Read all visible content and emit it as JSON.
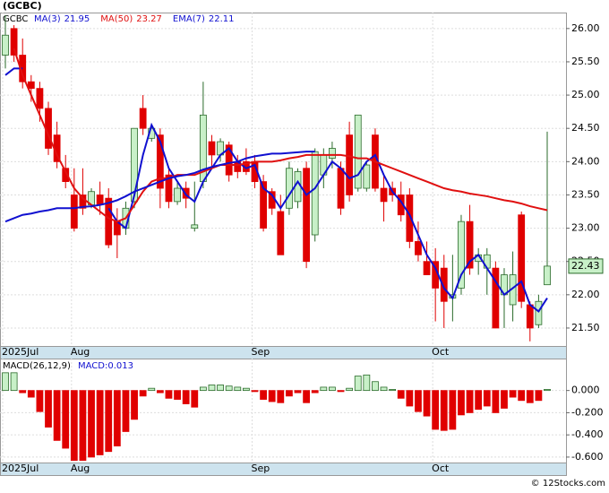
{
  "chart_data": [
    {
      "type": "candlestick",
      "title": "(GCBC)",
      "symbol": "GCBC",
      "categories": [
        "2025Jul",
        null,
        null,
        null,
        null,
        null,
        null,
        null,
        "Aug",
        null,
        null,
        null,
        null,
        null,
        null,
        null,
        null,
        null,
        null,
        null,
        null,
        null,
        null,
        null,
        null,
        null,
        null,
        null,
        null,
        "Sep",
        null,
        null,
        null,
        null,
        null,
        null,
        null,
        null,
        null,
        null,
        null,
        null,
        null,
        null,
        null,
        null,
        null,
        null,
        null,
        null,
        "Oct",
        null,
        null,
        null,
        null,
        null,
        null,
        null,
        null,
        null,
        null,
        null,
        null,
        null
      ],
      "open": [
        25.6,
        26.0,
        25.6,
        25.2,
        25.1,
        24.8,
        24.4,
        23.9,
        23.5,
        23.5,
        23.35,
        23.5,
        23.45,
        23.1,
        23.0,
        23.4,
        24.8,
        24.35,
        24.4,
        23.8,
        23.4,
        23.6,
        23.0,
        23.7,
        24.3,
        24.1,
        24.25,
        24.0,
        24.0,
        24.0,
        23.7,
        23.55,
        23.25,
        23.3,
        23.4,
        23.9,
        22.9,
        23.8,
        24.05,
        23.9,
        24.4,
        23.6,
        23.6,
        24.4,
        23.6,
        23.6,
        23.5,
        23.5,
        22.8,
        22.5,
        22.5,
        22.4,
        21.95,
        22.1,
        23.1,
        22.5,
        22.4,
        22.4,
        22.0,
        21.85,
        23.2,
        21.85,
        21.55,
        22.15
      ],
      "high": [
        26.2,
        26.05,
        25.85,
        25.3,
        25.2,
        24.9,
        24.6,
        24.1,
        23.9,
        23.9,
        23.6,
        23.7,
        23.6,
        23.3,
        23.4,
        24.5,
        25.0,
        24.55,
        24.5,
        23.9,
        23.7,
        23.7,
        23.7,
        25.2,
        24.4,
        24.35,
        24.3,
        24.1,
        24.2,
        24.1,
        23.8,
        23.6,
        23.5,
        24.0,
        23.9,
        24.0,
        24.2,
        24.2,
        24.3,
        24.0,
        24.6,
        24.7,
        24.0,
        24.5,
        23.8,
        23.7,
        23.7,
        23.6,
        23.1,
        22.8,
        22.7,
        22.6,
        22.6,
        23.2,
        23.35,
        22.7,
        22.7,
        22.5,
        22.4,
        22.65,
        23.25,
        21.9,
        22.0,
        24.45
      ],
      "low": [
        25.4,
        25.5,
        25.1,
        24.9,
        24.6,
        24.1,
        23.9,
        23.6,
        22.95,
        23.2,
        23.3,
        23.2,
        22.7,
        22.55,
        22.9,
        23.3,
        24.4,
        24.3,
        23.3,
        23.3,
        23.35,
        23.3,
        22.95,
        23.6,
        23.9,
        24.0,
        23.7,
        23.75,
        23.8,
        23.6,
        22.95,
        23.2,
        22.6,
        23.2,
        23.3,
        22.4,
        22.8,
        23.6,
        23.9,
        23.2,
        23.4,
        23.55,
        23.55,
        23.55,
        23.1,
        23.4,
        23.1,
        22.7,
        22.5,
        22.3,
        21.6,
        21.5,
        21.6,
        22.0,
        22.3,
        22.3,
        22.0,
        21.5,
        21.5,
        21.6,
        21.8,
        21.3,
        21.5,
        22.2
      ],
      "close": [
        25.9,
        25.6,
        25.2,
        25.1,
        24.8,
        24.2,
        24.0,
        23.7,
        23.0,
        23.3,
        23.55,
        23.35,
        22.75,
        22.9,
        23.3,
        24.5,
        24.5,
        24.5,
        23.6,
        23.4,
        23.6,
        23.45,
        23.05,
        24.7,
        24.1,
        24.3,
        23.8,
        23.85,
        23.85,
        23.7,
        23.0,
        23.3,
        22.6,
        23.9,
        23.85,
        22.5,
        24.15,
        24.1,
        24.2,
        23.3,
        23.5,
        24.7,
        23.95,
        23.6,
        23.4,
        23.5,
        23.2,
        22.8,
        22.6,
        22.3,
        22.1,
        21.9,
        22.0,
        23.1,
        22.4,
        22.6,
        22.6,
        21.5,
        22.3,
        22.3,
        21.9,
        21.5,
        21.9,
        22.43
      ],
      "up_color": "#c8f0c8",
      "up_edge": "#2a6a2a",
      "down_color": "#e00000",
      "series": [
        {
          "name": "MA(3)",
          "value": 21.95,
          "color": "#1010d0",
          "values": [
            25.3,
            25.4,
            25.4,
            null,
            null,
            null,
            null,
            null,
            null,
            null,
            null,
            null,
            23.3,
            23.1,
            23.0,
            23.5,
            24.1,
            24.55,
            24.3,
            23.9,
            23.7,
            23.5,
            23.4,
            23.7,
            23.9,
            24.1,
            24.2,
            24.0,
            23.9,
            23.95,
            23.6,
            23.5,
            23.3,
            23.5,
            23.7,
            23.5,
            23.6,
            23.8,
            24.0,
            23.9,
            23.75,
            23.8,
            24.0,
            24.1,
            23.8,
            23.55,
            23.4,
            23.2,
            22.9,
            22.6,
            22.4,
            22.1,
            21.95,
            22.3,
            22.5,
            22.6,
            22.4,
            22.2,
            22.0,
            22.1,
            22.2,
            21.85,
            21.75,
            21.95
          ]
        },
        {
          "name": "MA(50)",
          "value": 23.27,
          "color": "#e01010",
          "values": [
            null,
            25.7,
            25.3,
            25.0,
            24.7,
            24.4,
            24.1,
            23.85,
            23.6,
            23.45,
            23.35,
            23.25,
            23.15,
            23.1,
            23.15,
            23.35,
            23.55,
            23.7,
            23.75,
            23.75,
            23.8,
            23.8,
            23.8,
            23.85,
            23.9,
            23.95,
            23.95,
            23.95,
            23.97,
            24.0,
            24.0,
            24.0,
            24.02,
            24.05,
            24.07,
            24.1,
            24.1,
            24.1,
            24.1,
            24.1,
            24.08,
            24.05,
            24.05,
            24.0,
            23.95,
            23.9,
            23.85,
            23.8,
            23.75,
            23.7,
            23.65,
            23.6,
            23.57,
            23.55,
            23.52,
            23.5,
            23.48,
            23.45,
            23.42,
            23.4,
            23.37,
            23.33,
            23.3,
            23.27
          ]
        },
        {
          "name": "EMA(7)",
          "value": 22.11,
          "color": "#1010d0",
          "values": [
            23.1,
            23.15,
            23.2,
            23.22,
            23.25,
            23.27,
            23.3,
            23.3,
            23.3,
            23.32,
            23.33,
            23.35,
            23.38,
            23.42,
            23.48,
            23.55,
            23.6,
            23.65,
            23.7,
            23.75,
            23.78,
            23.8,
            23.83,
            23.88,
            23.92,
            23.95,
            23.98,
            24.0,
            24.05,
            24.08,
            24.1,
            24.12,
            24.12,
            24.13,
            24.14,
            24.15,
            24.15,
            null,
            null,
            null,
            null,
            null,
            null,
            null,
            null,
            null,
            null,
            null,
            null,
            null,
            null,
            null,
            null,
            null,
            null,
            null,
            null,
            null,
            null,
            null,
            null,
            null,
            null,
            null
          ]
        }
      ],
      "last_price": 22.43,
      "ylim": [
        21.23,
        26.24
      ],
      "yticks": [
        {
          "value": 21.5,
          "label": "21.50"
        },
        {
          "value": 22,
          "label": "22.00"
        },
        {
          "value": 22.5,
          "label": "22.50"
        },
        {
          "value": 23,
          "label": "23.00"
        },
        {
          "value": 23.5,
          "label": "23.50"
        },
        {
          "value": 24,
          "label": "24.00"
        },
        {
          "value": 24.5,
          "label": "24.50"
        },
        {
          "value": 25,
          "label": "25.00"
        },
        {
          "value": 25.5,
          "label": "25.50"
        },
        {
          "value": 26,
          "label": "26.00"
        }
      ],
      "grid": true
    },
    {
      "type": "bar",
      "title": "MACD(26,12,9)",
      "label": "MACD:0.013",
      "values": [
        0.16,
        0.16,
        -0.02,
        -0.06,
        -0.19,
        -0.33,
        -0.45,
        -0.52,
        -0.63,
        -0.63,
        -0.6,
        -0.58,
        -0.55,
        -0.5,
        -0.37,
        -0.26,
        -0.05,
        0.02,
        -0.02,
        -0.07,
        -0.08,
        -0.12,
        -0.15,
        0.03,
        0.05,
        0.05,
        0.04,
        0.03,
        0.02,
        -0.01,
        -0.08,
        -0.1,
        -0.11,
        -0.05,
        -0.02,
        -0.11,
        -0.02,
        0.03,
        0.03,
        -0.01,
        0.02,
        0.13,
        0.14,
        0.08,
        0.03,
        0.01,
        -0.07,
        -0.14,
        -0.19,
        -0.23,
        -0.35,
        -0.36,
        -0.35,
        -0.22,
        -0.2,
        -0.17,
        -0.14,
        -0.2,
        -0.16,
        -0.06,
        -0.09,
        -0.11,
        -0.09,
        0.01
      ],
      "up_color": "#c8f0c8",
      "up_edge": "#2a6a2a",
      "down_color": "#e00000",
      "ylim": [
        -0.649,
        0.288
      ],
      "yticks": [
        {
          "value": -0.6,
          "label": "-0.600"
        },
        {
          "value": -0.4,
          "label": "-0.400"
        },
        {
          "value": -0.2,
          "label": "-0.200"
        },
        {
          "value": 0,
          "label": "0.000"
        }
      ],
      "grid": true
    }
  ],
  "footer": "© 12Stocks.com"
}
